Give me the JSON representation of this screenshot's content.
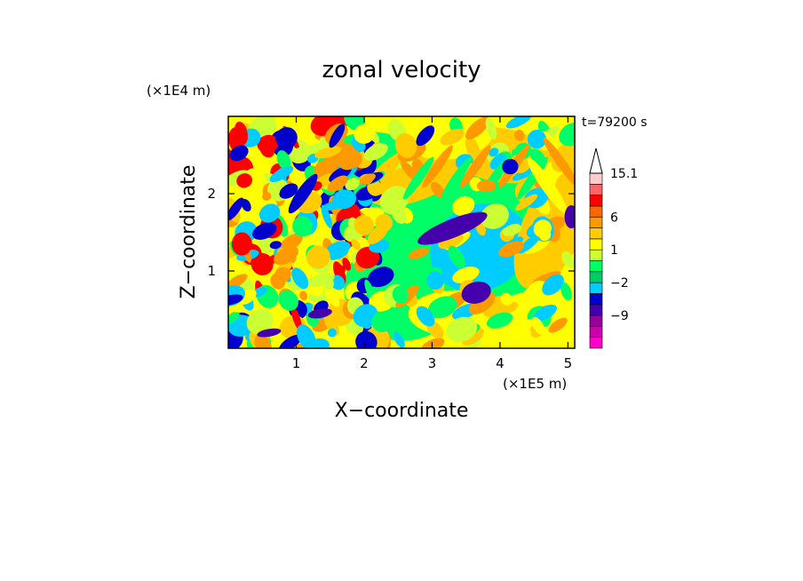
{
  "chart_data": {
    "type": "heatmap",
    "title": "zonal velocity",
    "xlabel": "X−coordinate",
    "ylabel": "Z−coordinate",
    "x_unit": "(×1E5 m)",
    "y_unit": "(×1E4 m)",
    "time_label": "t=79200 s",
    "xlim": [
      0.0,
      5.1
    ],
    "ylim": [
      0.0,
      3.0
    ],
    "xticks": [
      {
        "value": 1,
        "label": "1"
      },
      {
        "value": 2,
        "label": "2"
      },
      {
        "value": 3,
        "label": "3"
      },
      {
        "value": 4,
        "label": "4"
      },
      {
        "value": 5,
        "label": "5"
      }
    ],
    "yticks": [
      {
        "value": 1,
        "label": "1"
      },
      {
        "value": 2,
        "label": "2"
      }
    ],
    "colorbar": {
      "levels": [
        -14,
        -11.5,
        -9,
        -6.5,
        -4,
        -2,
        -1,
        0,
        1,
        2,
        4,
        6,
        8.5,
        11,
        13,
        15.1
      ],
      "colors": [
        "#ff00cc",
        "#cc00aa",
        "#990099",
        "#4400aa",
        "#0000cc",
        "#00ccff",
        "#00cc66",
        "#00ff66",
        "#ccff33",
        "#ffff00",
        "#ffcc00",
        "#ff9900",
        "#ff6600",
        "#ff0000",
        "#ff6666",
        "#ffcccc"
      ],
      "labels": [
        {
          "value": 15.1,
          "label": "15.1"
        },
        {
          "value": 6,
          "label": "6"
        },
        {
          "value": 1,
          "label": "1"
        },
        {
          "value": -2,
          "label": "−2"
        },
        {
          "value": -9,
          "label": "−9"
        }
      ],
      "extend": "max"
    },
    "grid": false,
    "legend": "colorbar-right"
  }
}
